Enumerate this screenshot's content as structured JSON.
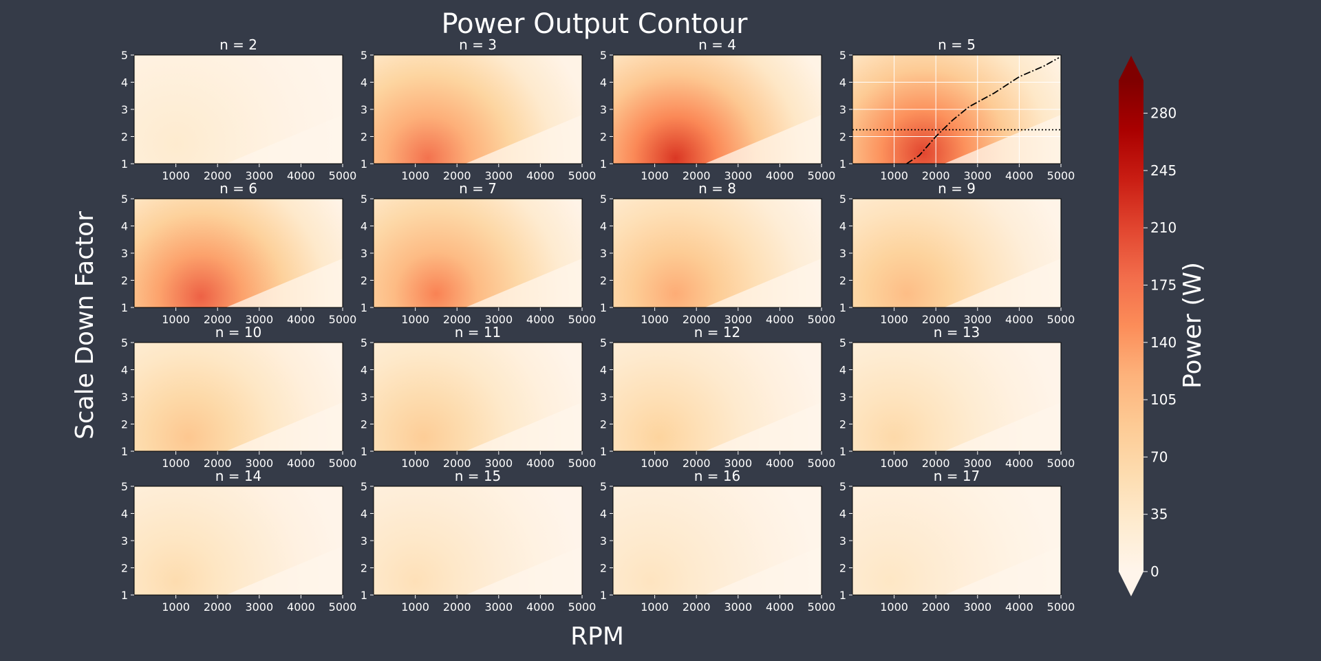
{
  "figure": {
    "title": "Power Output Contour",
    "xlabel": "RPM",
    "ylabel": "Scale Down Factor",
    "background_color": "#353b48"
  },
  "colorbar": {
    "label": "Power (W)",
    "colormap": "OrRd",
    "range": [
      0,
      300
    ],
    "ticks": [
      0,
      35,
      70,
      105,
      140,
      175,
      210,
      245,
      280
    ],
    "extend": "both"
  },
  "chart_data": {
    "type": "heatmap",
    "x_range": [
      0,
      5000
    ],
    "y_range": [
      1,
      5
    ],
    "x_ticks": [
      1000,
      2000,
      3000,
      4000,
      5000
    ],
    "y_ticks": [
      1,
      2,
      3,
      4,
      5
    ],
    "panels": [
      {
        "title": "n = 2",
        "n": 2,
        "peak": 30,
        "peak_rpm": 1000,
        "peak_scale": 1.7
      },
      {
        "title": "n = 3",
        "n": 3,
        "peak": 175,
        "peak_rpm": 1300,
        "peak_scale": 1.2
      },
      {
        "title": "n = 4",
        "n": 4,
        "peak": 220,
        "peak_rpm": 1500,
        "peak_scale": 1.2
      },
      {
        "title": "n = 5",
        "n": 5,
        "peak": 210,
        "peak_rpm": 1700,
        "peak_scale": 1.4,
        "grid": true,
        "overlays": [
          {
            "style": "dash-dot",
            "points": [
              [
                1300,
                1.0
              ],
              [
                1600,
                1.3
              ],
              [
                2000,
                2.0
              ],
              [
                2400,
                2.6
              ],
              [
                2800,
                3.1
              ],
              [
                3400,
                3.6
              ],
              [
                4000,
                4.2
              ],
              [
                4600,
                4.6
              ],
              [
                4950,
                4.9
              ]
            ]
          },
          {
            "style": "dotted",
            "points": [
              [
                0,
                2.25
              ],
              [
                5000,
                2.25
              ]
            ]
          }
        ]
      },
      {
        "title": "n = 6",
        "n": 6,
        "peak": 190,
        "peak_rpm": 1600,
        "peak_scale": 1.4
      },
      {
        "title": "n = 7",
        "n": 7,
        "peak": 160,
        "peak_rpm": 1500,
        "peak_scale": 1.5
      },
      {
        "title": "n = 8",
        "n": 8,
        "peak": 125,
        "peak_rpm": 1500,
        "peak_scale": 1.5
      },
      {
        "title": "n = 9",
        "n": 9,
        "peak": 110,
        "peak_rpm": 1300,
        "peak_scale": 1.5
      },
      {
        "title": "n = 10",
        "n": 10,
        "peak": 95,
        "peak_rpm": 1300,
        "peak_scale": 1.5
      },
      {
        "title": "n = 11",
        "n": 11,
        "peak": 85,
        "peak_rpm": 1200,
        "peak_scale": 1.5
      },
      {
        "title": "n = 12",
        "n": 12,
        "peak": 75,
        "peak_rpm": 1100,
        "peak_scale": 1.5
      },
      {
        "title": "n = 13",
        "n": 13,
        "peak": 65,
        "peak_rpm": 1000,
        "peak_scale": 1.5
      },
      {
        "title": "n = 14",
        "n": 14,
        "peak": 60,
        "peak_rpm": 1000,
        "peak_scale": 1.5
      },
      {
        "title": "n = 15",
        "n": 15,
        "peak": 52,
        "peak_rpm": 1000,
        "peak_scale": 1.5
      },
      {
        "title": "n = 16",
        "n": 16,
        "peak": 45,
        "peak_rpm": 900,
        "peak_scale": 1.5
      },
      {
        "title": "n = 17",
        "n": 17,
        "peak": 40,
        "peak_rpm": 900,
        "peak_scale": 1.5
      }
    ]
  }
}
